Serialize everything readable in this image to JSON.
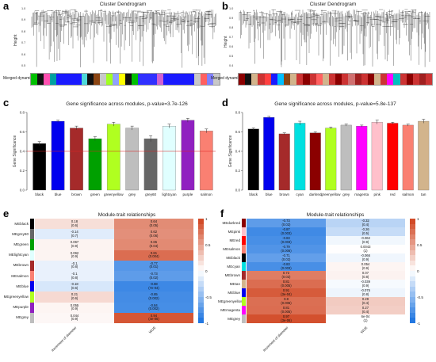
{
  "panels": {
    "a": {
      "label": "a",
      "title": "Cluster Dendrogram",
      "ylabel": "Height",
      "merged_label": "Merged dynamic",
      "ticks": [
        "1.0",
        "0.9",
        "0.8",
        "0.7",
        "0.6",
        "0.5"
      ],
      "colors": [
        "#00c000",
        "#111111",
        "#ff4fb0",
        "#00a0a0",
        "#1a1aff",
        "#1a1aff",
        "#1a1aff",
        "#1a1aff",
        "#4dd9d9",
        "#111111",
        "#8b4513",
        "#c8c8c8",
        "#a0ff20",
        "#90a0ff",
        "#ffff00",
        "#111111",
        "#00c000",
        "#3030ff",
        "#3030ff",
        "#3030ff",
        "#d060d0",
        "#1a1aff",
        "#1a1aff",
        "#1a1aff",
        "#1a1aff",
        "#1a1aff",
        "#c8c8c8",
        "#ff6060",
        "#8080ff",
        "#c8c8c8"
      ]
    },
    "b": {
      "label": "b",
      "title": "Cluster Dendrogram",
      "ylabel": "Height",
      "merged_label": "Merged dynamic",
      "ticks": [
        "1.0",
        "0.9",
        "0.8",
        "0.7",
        "0.6",
        "0.5",
        "0.4"
      ],
      "colors": [
        "#8b0000",
        "#111111",
        "#d2b48c",
        "#cc3333",
        "#ff4040",
        "#1a1aff",
        "#00bfff",
        "#8b4513",
        "#d2b48c",
        "#cc3333",
        "#8b0000",
        "#cc3333",
        "#ff6060",
        "#d2b48c",
        "#cc3333",
        "#8b0000",
        "#cc3333",
        "#d07070",
        "#a02020",
        "#cc3333",
        "#8b0000",
        "#d2b48c",
        "#cc3333",
        "#ff00ff",
        "#00c0c0",
        "#cc3333",
        "#8b0000",
        "#cc3333",
        "#a02020",
        "#cc3333"
      ]
    }
  },
  "chart_data": [
    {
      "id": "c",
      "type": "bar",
      "label": "c",
      "title": "Gene significance across modules, p-value=3.7e-126",
      "ylabel": "Gene Significance",
      "ylim": [
        0,
        0.8
      ],
      "yticks": [
        "0.0",
        "0.2",
        "0.4",
        "0.6",
        "0.8"
      ],
      "categories": [
        "black",
        "blue",
        "brown",
        "green",
        "greenyellow",
        "grey",
        "grey60",
        "lightcyan",
        "purple",
        "salmon"
      ],
      "values": [
        0.48,
        0.71,
        0.64,
        0.53,
        0.68,
        0.64,
        0.53,
        0.66,
        0.72,
        0.61
      ],
      "errors": [
        0.02,
        0.01,
        0.02,
        0.02,
        0.02,
        0.02,
        0.03,
        0.02,
        0.02,
        0.02
      ],
      "bar_colors": [
        "#000000",
        "#0000ee",
        "#a52a2a",
        "#00a000",
        "#b0ff20",
        "#bebebe",
        "#666666",
        "#e0ffff",
        "#9020c0",
        "#fa8072"
      ],
      "hline": 0.4
    },
    {
      "id": "d",
      "type": "bar",
      "label": "d",
      "title": "Gene significance across modules, p-value=5.8e-137",
      "ylabel": "Gene Significance",
      "ylim": [
        0,
        0.8
      ],
      "yticks": [
        "0.0",
        "0.2",
        "0.4",
        "0.6",
        "0.8"
      ],
      "categories": [
        "black",
        "blue",
        "brown",
        "cyan",
        "darkred",
        "greenyellow",
        "grey",
        "magenta",
        "pink",
        "red",
        "salmon",
        "tan"
      ],
      "values": [
        0.63,
        0.75,
        0.58,
        0.69,
        0.59,
        0.64,
        0.67,
        0.66,
        0.7,
        0.69,
        0.67,
        0.71
      ],
      "errors": [
        0.01,
        0.01,
        0.01,
        0.02,
        0.01,
        0.01,
        0.01,
        0.01,
        0.02,
        0.01,
        0.01,
        0.02
      ],
      "bar_colors": [
        "#000000",
        "#0000ee",
        "#a52a2a",
        "#00e0e0",
        "#8b0000",
        "#b0ff20",
        "#bebebe",
        "#ff00ff",
        "#ffc0cb",
        "#ff0000",
        "#fa8072",
        "#d2b48c"
      ]
    }
  ],
  "heatmap_e": {
    "label": "e",
    "title": "Module-trait relationships",
    "columns": [
      "Increment of diameter",
      "WUE"
    ],
    "legend_ticks": [
      "1",
      "0.5",
      "0",
      "-0.5",
      "-1"
    ],
    "rows": [
      {
        "name": "MEblack",
        "swatch": "#000000",
        "cells": [
          {
            "r": "0.18",
            "p": "(0.6)",
            "v": 0.18
          },
          {
            "r": "0.64",
            "p": "(0.05)",
            "v": 0.64
          }
        ]
      },
      {
        "name": "MEgrey60",
        "swatch": "#666666",
        "cells": [
          {
            "r": "-0.14",
            "p": "(0.7)",
            "v": -0.14
          },
          {
            "r": "0.62",
            "p": "(0.06)",
            "v": 0.62
          }
        ]
      },
      {
        "name": "MEgreen",
        "swatch": "#00a000",
        "cells": [
          {
            "r": "0.067",
            "p": "(0.9)",
            "v": 0.067
          },
          {
            "r": "0.65",
            "p": "(0.04)",
            "v": 0.65
          }
        ]
      },
      {
        "name": "MElightcyan",
        "swatch": "#e0ffff",
        "cells": [
          {
            "r": "0.062",
            "p": "(0.9)",
            "v": 0.062
          },
          {
            "r": "0.81",
            "p": "(0.004)",
            "v": 0.81
          }
        ]
      },
      {
        "name": "MEbrown",
        "swatch": "#a52a2a",
        "cells": [
          {
            "r": "-0.1",
            "p": "(0.8)",
            "v": -0.1
          },
          {
            "r": "-0.77",
            "p": "(0.01)",
            "v": -0.77
          }
        ]
      },
      {
        "name": "MEsalmon",
        "swatch": "#fa8072",
        "cells": [
          {
            "r": "-0.1",
            "p": "(0.8)",
            "v": -0.1
          },
          {
            "r": "-0.73",
            "p": "(0.02)",
            "v": -0.73
          }
        ]
      },
      {
        "name": "MEblue",
        "swatch": "#0000ee",
        "cells": [
          {
            "r": "-0.18",
            "p": "(0.6)",
            "v": -0.18
          },
          {
            "r": "-0.88",
            "p": "(7e-04)",
            "v": -0.88
          }
        ]
      },
      {
        "name": "MEgreenyellow",
        "swatch": "#b0ff20",
        "cells": [
          {
            "r": "0.21",
            "p": "(0.6)",
            "v": 0.21
          },
          {
            "r": "-0.85",
            "p": "(0.002)",
            "v": -0.85
          }
        ]
      },
      {
        "name": "MEpurple",
        "swatch": "#9020c0",
        "cells": [
          {
            "r": "0.055",
            "p": "(0.9)",
            "v": 0.055
          },
          {
            "r": "-0.84",
            "p": "(0.002)",
            "v": -0.84
          }
        ]
      },
      {
        "name": "MEgrey",
        "swatch": "#bebebe",
        "cells": [
          {
            "r": "0.044",
            "p": "(0.9)",
            "v": 0.044
          },
          {
            "r": "0.94",
            "p": "(4e-05)",
            "v": 0.94
          }
        ]
      }
    ]
  },
  "heatmap_f": {
    "label": "f",
    "title": "Module-trait relationships",
    "columns": [
      "Increment of diameter",
      "WUE"
    ],
    "legend_ticks": [
      "1",
      "0.5",
      "0",
      "-0.5",
      "-1"
    ],
    "rows": [
      {
        "name": "MEdarkred",
        "swatch": "#8b0000",
        "cells": [
          {
            "r": "-0.73",
            "p": "(0.02)",
            "v": -0.73
          },
          {
            "r": "-0.32",
            "p": "(0.4)",
            "v": -0.32
          }
        ]
      },
      {
        "name": "MEpink",
        "swatch": "#ffc0cb",
        "cells": [
          {
            "r": "-0.87",
            "p": "(0.003)",
            "v": -0.87
          },
          {
            "r": "-0.26",
            "p": "(0.5)",
            "v": -0.26
          }
        ]
      },
      {
        "name": "MEred",
        "swatch": "#ff0000",
        "cells": [
          {
            "r": "-0.83",
            "p": "(0.003)",
            "v": -0.83
          },
          {
            "r": "-0.062",
            "p": "(0.9)",
            "v": -0.062
          }
        ]
      },
      {
        "name": "MEsalmon",
        "swatch": "#fa8072",
        "cells": [
          {
            "r": "-0.79",
            "p": "(0.006)",
            "v": -0.79
          },
          {
            "r": "0.0043",
            "p": "(1)",
            "v": 0.0043
          }
        ]
      },
      {
        "name": "MEblack",
        "swatch": "#000000",
        "cells": [
          {
            "r": "-0.71",
            "p": "(0.02)",
            "v": -0.71
          },
          {
            "r": "-0.066",
            "p": "(0.9)",
            "v": -0.066
          }
        ]
      },
      {
        "name": "MEcyan",
        "swatch": "#00e0e0",
        "cells": [
          {
            "r": "-0.83",
            "p": "(0.003)",
            "v": -0.83
          },
          {
            "r": "0.054",
            "p": "(0.9)",
            "v": 0.054
          }
        ]
      },
      {
        "name": "MEbrown",
        "swatch": "#a52a2a",
        "cells": [
          {
            "r": "0.72",
            "p": "(0.02)",
            "v": 0.72
          },
          {
            "r": "0.07",
            "p": "(0.8)",
            "v": 0.07
          }
        ]
      },
      {
        "name": "MEtan",
        "swatch": "#d2b48c",
        "cells": [
          {
            "r": "0.81",
            "p": "(0.005)",
            "v": 0.81
          },
          {
            "r": "-0.039",
            "p": "(0.9)",
            "v": -0.039
          }
        ]
      },
      {
        "name": "MEblue",
        "swatch": "#0000ee",
        "cells": [
          {
            "r": "0.91",
            "p": "(3e-04)",
            "v": 0.91
          },
          {
            "r": "-0.075",
            "p": "(0.8)",
            "v": -0.075
          }
        ]
      },
      {
        "name": "MEgreenyellow",
        "swatch": "#b0ff20",
        "cells": [
          {
            "r": "0.8",
            "p": "(0.006)",
            "v": 0.8
          },
          {
            "r": "0.29",
            "p": "(0.4)",
            "v": 0.29
          }
        ]
      },
      {
        "name": "MEmagenta",
        "swatch": "#ff00ff",
        "cells": [
          {
            "r": "0.81",
            "p": "(0.005)",
            "v": 0.81
          },
          {
            "r": "0.27",
            "p": "(0.4)",
            "v": 0.27
          }
        ]
      },
      {
        "name": "MEgrey",
        "swatch": "#bebebe",
        "cells": [
          {
            "r": "0.97",
            "p": "(3e-06)",
            "v": 0.97
          },
          {
            "r": "6e-04",
            "p": "(1)",
            "v": 0.0006
          }
        ]
      }
    ]
  }
}
